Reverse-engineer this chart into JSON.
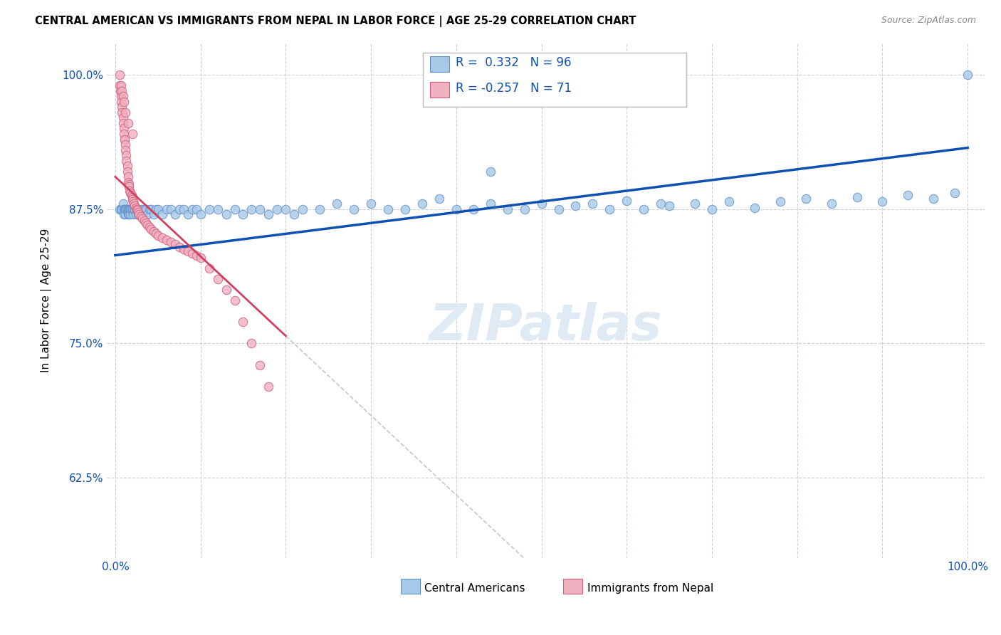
{
  "title": "CENTRAL AMERICAN VS IMMIGRANTS FROM NEPAL IN LABOR FORCE | AGE 25-29 CORRELATION CHART",
  "source": "Source: ZipAtlas.com",
  "ylabel": "In Labor Force | Age 25-29",
  "r1": 0.332,
  "n1": 96,
  "r2": -0.257,
  "n2": 71,
  "color_blue": "#a8c8e8",
  "color_blue_edge": "#6090c8",
  "color_blue_line": "#1050b0",
  "color_pink": "#f0b0c0",
  "color_pink_edge": "#d06080",
  "color_pink_line": "#d04060",
  "color_dashed": "#c0c8d0",
  "legend_label1": "Central Americans",
  "legend_label2": "Immigrants from Nepal",
  "watermark_text": "ZIPatlas",
  "blue_x": [
    0.005,
    0.007,
    0.008,
    0.009,
    0.01,
    0.01,
    0.011,
    0.012,
    0.012,
    0.013,
    0.014,
    0.015,
    0.015,
    0.016,
    0.016,
    0.017,
    0.018,
    0.018,
    0.019,
    0.02,
    0.021,
    0.022,
    0.023,
    0.024,
    0.025,
    0.026,
    0.027,
    0.028,
    0.03,
    0.032,
    0.034,
    0.036,
    0.038,
    0.04,
    0.042,
    0.045,
    0.048,
    0.05,
    0.055,
    0.06,
    0.065,
    0.07,
    0.075,
    0.08,
    0.085,
    0.09,
    0.095,
    0.1,
    0.11,
    0.12,
    0.13,
    0.14,
    0.15,
    0.16,
    0.17,
    0.18,
    0.19,
    0.2,
    0.21,
    0.22,
    0.24,
    0.26,
    0.28,
    0.3,
    0.32,
    0.34,
    0.36,
    0.38,
    0.4,
    0.42,
    0.44,
    0.46,
    0.48,
    0.5,
    0.52,
    0.54,
    0.56,
    0.58,
    0.6,
    0.62,
    0.65,
    0.68,
    0.7,
    0.72,
    0.75,
    0.78,
    0.81,
    0.84,
    0.87,
    0.9,
    0.93,
    0.96,
    0.985,
    1.0,
    0.44,
    0.64
  ],
  "blue_y": [
    0.875,
    0.875,
    0.875,
    0.88,
    0.875,
    0.87,
    0.875,
    0.875,
    0.87,
    0.875,
    0.875,
    0.875,
    0.87,
    0.875,
    0.87,
    0.875,
    0.875,
    0.87,
    0.875,
    0.875,
    0.87,
    0.875,
    0.875,
    0.87,
    0.875,
    0.875,
    0.87,
    0.875,
    0.875,
    0.87,
    0.875,
    0.875,
    0.87,
    0.875,
    0.875,
    0.87,
    0.875,
    0.875,
    0.87,
    0.875,
    0.875,
    0.87,
    0.875,
    0.875,
    0.87,
    0.875,
    0.875,
    0.87,
    0.875,
    0.875,
    0.87,
    0.875,
    0.87,
    0.875,
    0.875,
    0.87,
    0.875,
    0.875,
    0.87,
    0.875,
    0.875,
    0.88,
    0.875,
    0.88,
    0.875,
    0.875,
    0.88,
    0.885,
    0.875,
    0.875,
    0.88,
    0.875,
    0.875,
    0.88,
    0.875,
    0.878,
    0.88,
    0.875,
    0.883,
    0.875,
    0.878,
    0.88,
    0.875,
    0.882,
    0.876,
    0.882,
    0.885,
    0.88,
    0.886,
    0.882,
    0.888,
    0.885,
    0.89,
    1.0,
    0.91,
    0.88
  ],
  "pink_x": [
    0.005,
    0.005,
    0.006,
    0.007,
    0.007,
    0.008,
    0.008,
    0.009,
    0.009,
    0.01,
    0.01,
    0.011,
    0.011,
    0.012,
    0.012,
    0.013,
    0.013,
    0.014,
    0.014,
    0.015,
    0.015,
    0.016,
    0.016,
    0.017,
    0.018,
    0.019,
    0.02,
    0.02,
    0.021,
    0.022,
    0.023,
    0.024,
    0.025,
    0.026,
    0.027,
    0.028,
    0.03,
    0.032,
    0.034,
    0.036,
    0.038,
    0.04,
    0.042,
    0.045,
    0.048,
    0.05,
    0.055,
    0.06,
    0.065,
    0.07,
    0.075,
    0.08,
    0.085,
    0.09,
    0.095,
    0.1,
    0.11,
    0.12,
    0.13,
    0.14,
    0.15,
    0.16,
    0.17,
    0.18,
    0.007,
    0.008,
    0.009,
    0.01,
    0.012,
    0.015,
    0.02
  ],
  "pink_y": [
    1.0,
    0.99,
    0.985,
    0.98,
    0.975,
    0.97,
    0.965,
    0.96,
    0.955,
    0.95,
    0.945,
    0.94,
    0.94,
    0.935,
    0.93,
    0.925,
    0.92,
    0.915,
    0.91,
    0.905,
    0.9,
    0.898,
    0.896,
    0.892,
    0.89,
    0.888,
    0.886,
    0.884,
    0.882,
    0.88,
    0.878,
    0.876,
    0.875,
    0.874,
    0.872,
    0.87,
    0.868,
    0.866,
    0.864,
    0.862,
    0.86,
    0.858,
    0.856,
    0.854,
    0.852,
    0.85,
    0.848,
    0.846,
    0.844,
    0.842,
    0.84,
    0.838,
    0.836,
    0.834,
    0.832,
    0.83,
    0.82,
    0.81,
    0.8,
    0.79,
    0.77,
    0.75,
    0.73,
    0.71,
    0.99,
    0.985,
    0.98,
    0.975,
    0.965,
    0.955,
    0.945
  ],
  "xlim": [
    0.0,
    1.0
  ],
  "ylim": [
    0.55,
    1.03
  ],
  "yticks": [
    0.625,
    0.75,
    0.875,
    1.0
  ],
  "ytick_labels": [
    "62.5%",
    "75.0%",
    "87.5%",
    "100.0%"
  ],
  "xtick_labels": [
    "0.0%",
    "",
    "",
    "",
    "",
    "",
    "",
    "",
    "",
    "",
    "100.0%"
  ]
}
